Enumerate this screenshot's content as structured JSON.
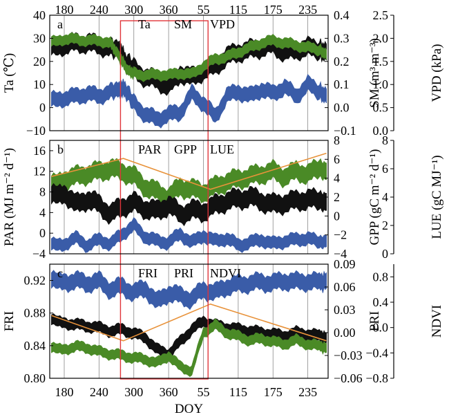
{
  "chart_data": {
    "type": "line",
    "shared_x": {
      "label": "DOY",
      "tick_labels": [
        "180",
        "240",
        "300",
        "360",
        "55",
        "115",
        "175",
        "235"
      ],
      "ticks_day": [
        180,
        240,
        300,
        360,
        420,
        480,
        540,
        600
      ],
      "range_day": [
        155,
        635
      ]
    },
    "highlight_box": {
      "x_range_day": [
        277,
        428
      ],
      "color": "#e0353a"
    },
    "panels": [
      {
        "id": "a",
        "left_axis": {
          "label": "Ta (℃)",
          "ylim": [
            -10,
            40
          ],
          "ticks": [
            -10,
            0,
            10,
            20,
            30,
            40
          ]
        },
        "right_axis": {
          "label": "SM (m³ m⁻³)",
          "ylim": [
            -0.1,
            0.4
          ],
          "ticks": [
            -0.1,
            0.0,
            0.1,
            0.2,
            0.3,
            0.4
          ],
          "tick_labels": [
            "−0.1",
            "0.0",
            "0.1",
            "0.2",
            "0.3",
            "0.4"
          ]
        },
        "right2_axis": {
          "label": "VPD (kPa)",
          "ylim": [
            0,
            2.5
          ],
          "ticks": [
            0,
            0.5,
            1.0,
            1.5,
            2.0,
            2.5
          ],
          "tick_labels": [
            "0.0",
            "0.5",
            "1.0",
            "1.5",
            "2.0",
            "2.5"
          ]
        },
        "legend": [
          "Ta",
          "SM",
          "VPD"
        ],
        "series": [
          {
            "name": "Ta",
            "color": "#111111",
            "axis": "left",
            "band": 3.5,
            "x": [
              158,
              180,
              200,
              220,
              240,
              260,
              275,
              285,
              300,
              320,
              340,
              360,
              380,
              400,
              420,
              440,
              460,
              480,
              500,
              520,
              540,
              560,
              580,
              600,
              620,
              632
            ],
            "y": [
              28,
              27,
              28,
              28,
              27,
              26,
              25,
              20,
              17,
              13,
              12,
              9,
              15,
              13,
              16,
              18,
              22,
              24,
              25,
              26,
              27,
              24,
              25,
              26,
              25,
              24
            ]
          },
          {
            "name": "SM",
            "color": "#3a5ca8",
            "axis": "right",
            "band": 0.03,
            "x": [
              158,
              180,
              200,
              220,
              240,
              260,
              275,
              285,
              300,
              320,
              340,
              360,
              380,
              400,
              420,
              440,
              460,
              480,
              500,
              520,
              540,
              560,
              580,
              600,
              620,
              632
            ],
            "y": [
              0.05,
              0.04,
              0.05,
              0.06,
              0.05,
              0.07,
              0.08,
              0.08,
              0.02,
              -0.03,
              -0.05,
              -0.03,
              -0.02,
              0.06,
              0.02,
              -0.04,
              0.05,
              0.07,
              0.05,
              0.08,
              0.06,
              0.09,
              0.05,
              0.1,
              0.07,
              0.05
            ]
          },
          {
            "name": "VPD",
            "color": "#4a8a26",
            "axis": "right2",
            "band": 0.1,
            "x": [
              158,
              180,
              200,
              220,
              240,
              260,
              270,
              280,
              290,
              300,
              320,
              340,
              360,
              380,
              400,
              420,
              440,
              460,
              480,
              500,
              520,
              540,
              560,
              580,
              600,
              620,
              632
            ],
            "y": [
              1.98,
              1.98,
              1.98,
              1.95,
              1.95,
              1.9,
              1.7,
              1.5,
              1.3,
              1.25,
              1.2,
              1.22,
              1.2,
              1.25,
              1.22,
              1.4,
              1.55,
              1.6,
              1.7,
              1.8,
              1.9,
              1.95,
              1.9,
              1.85,
              1.8,
              1.75,
              1.65
            ]
          }
        ]
      },
      {
        "id": "b",
        "left_axis": {
          "label": "PAR (MJ m⁻² d⁻¹)",
          "ylim": [
            -4,
            18
          ],
          "ticks": [
            -4,
            0,
            4,
            8,
            12,
            16
          ]
        },
        "right_axis": {
          "label": "GPP (gC m⁻² d⁻¹)",
          "ylim": [
            -4,
            8
          ],
          "ticks": [
            -4,
            -2,
            0,
            2,
            4,
            6,
            8
          ],
          "tick_labels": [
            "−4",
            "−2",
            "0",
            "2",
            "4",
            "6",
            "8"
          ]
        },
        "right2_axis": {
          "label": "LUE (gC MJ⁻¹)",
          "ylim": [
            0,
            8
          ],
          "ticks": [
            0,
            2,
            4,
            6,
            8
          ]
        },
        "legend": [
          "PAR",
          "GPP",
          "LUE"
        ],
        "series": [
          {
            "name": "PAR",
            "color": "#4a8a26",
            "axis": "left",
            "band": 1.6,
            "x": [
              158,
              180,
              200,
              220,
              240,
              260,
              280,
              300,
              320,
              340,
              360,
              380,
              400,
              420,
              440,
              460,
              480,
              500,
              520,
              540,
              560,
              580,
              600,
              620,
              632
            ],
            "y": [
              10,
              10.5,
              11,
              11.5,
              12,
              12.5,
              12,
              11,
              9,
              8,
              7,
              9,
              8.5,
              8,
              9,
              10,
              10.5,
              11,
              11.5,
              12,
              11,
              12,
              11.5,
              12.5,
              12
            ]
          },
          {
            "name": "GPP",
            "color": "#111111",
            "axis": "right",
            "band": 0.9,
            "x": [
              158,
              180,
              200,
              220,
              240,
              260,
              280,
              300,
              320,
              340,
              360,
              380,
              400,
              420,
              440,
              460,
              480,
              500,
              520,
              540,
              560,
              580,
              600,
              620,
              632
            ],
            "y": [
              2.5,
              2.5,
              1.2,
              1.8,
              1.2,
              0.2,
              1.0,
              1.4,
              0.8,
              0.5,
              1.2,
              0.2,
              0.6,
              0.5,
              1.1,
              1.6,
              1.8,
              2.0,
              1.6,
              1.2,
              1.4,
              1.6,
              1.8,
              1.6,
              1.5
            ]
          },
          {
            "name": "LUE",
            "color": "#3a5ca8",
            "axis": "right2",
            "band": 0.4,
            "x": [
              158,
              180,
              200,
              220,
              240,
              260,
              280,
              300,
              320,
              340,
              360,
              380,
              400,
              420,
              440,
              460,
              480,
              500,
              520,
              540,
              560,
              580,
              600,
              620,
              632
            ],
            "y": [
              0.8,
              0.7,
              1.1,
              0.6,
              1.0,
              0.7,
              1.4,
              2.0,
              1.2,
              0.9,
              0.8,
              1.4,
              0.8,
              1.3,
              0.9,
              1.1,
              0.6,
              0.8,
              1.0,
              0.7,
              0.9,
              1.0,
              1.1,
              0.8,
              0.9
            ]
          }
        ],
        "trend": {
          "color": "#e8923a",
          "axis": "left",
          "x": [
            158,
            282,
            432,
            632
          ],
          "y": [
            11,
            14.5,
            8.5,
            15.5
          ]
        }
      },
      {
        "id": "c",
        "left_axis": {
          "label": "FRI",
          "ylim": [
            0.8,
            0.94
          ],
          "ticks": [
            0.8,
            0.84,
            0.88,
            0.92
          ],
          "tick_labels": [
            "0.80",
            "0.84",
            "0.88",
            "0.92"
          ]
        },
        "right_axis": {
          "label": "PRI",
          "ylim": [
            -0.06,
            0.09
          ],
          "ticks": [
            -0.06,
            -0.03,
            0.0,
            0.03,
            0.06,
            0.09
          ],
          "tick_labels": [
            "−0.06",
            "−0.03",
            "0.00",
            "0.03",
            "0.06",
            "0.09"
          ]
        },
        "right2_axis": {
          "label": "NDVI",
          "ylim": [
            -0.8,
            1.0
          ],
          "ticks": [
            -0.8,
            -0.4,
            0.0,
            0.4,
            0.8
          ],
          "tick_labels": [
            "−0.8",
            "−0.4",
            "0.0",
            "0.4",
            "0.8"
          ]
        },
        "legend": [
          "FRI",
          "PRI",
          "NDVI"
        ],
        "series": [
          {
            "name": "NDVI",
            "color": "#3a5ca8",
            "axis": "right2",
            "band": 0.12,
            "x": [
              158,
              180,
              200,
              220,
              240,
              260,
              280,
              300,
              320,
              340,
              360,
              380,
              400,
              420,
              440,
              460,
              480,
              500,
              520,
              540,
              560,
              580,
              600,
              620,
              632
            ],
            "y": [
              0.75,
              0.72,
              0.74,
              0.7,
              0.73,
              0.6,
              0.65,
              0.55,
              0.62,
              0.4,
              0.55,
              0.5,
              0.45,
              0.6,
              0.55,
              0.65,
              0.68,
              0.7,
              0.72,
              0.7,
              0.74,
              0.72,
              0.73,
              0.71,
              0.74
            ]
          },
          {
            "name": "FRI",
            "color": "#111111",
            "axis": "left",
            "band": 0.006,
            "x": [
              158,
              180,
              200,
              220,
              240,
              260,
              280,
              300,
              320,
              340,
              360,
              380,
              400,
              420,
              440,
              460,
              480,
              500,
              520,
              540,
              560,
              580,
              600,
              620,
              632
            ],
            "y": [
              0.872,
              0.868,
              0.866,
              0.864,
              0.862,
              0.858,
              0.86,
              0.855,
              0.85,
              0.835,
              0.83,
              0.845,
              0.86,
              0.87,
              0.865,
              0.862,
              0.86,
              0.858,
              0.856,
              0.854,
              0.852,
              0.856,
              0.854,
              0.852,
              0.85
            ]
          },
          {
            "name": "PRI",
            "color": "#4a8a26",
            "axis": "right",
            "band": 0.006,
            "x": [
              158,
              180,
              200,
              220,
              240,
              260,
              280,
              300,
              320,
              340,
              360,
              380,
              400,
              420,
              440,
              460,
              480,
              500,
              520,
              540,
              560,
              580,
              600,
              620,
              632
            ],
            "y": [
              -0.02,
              -0.022,
              -0.018,
              -0.02,
              -0.025,
              -0.028,
              -0.03,
              -0.033,
              -0.035,
              -0.04,
              -0.03,
              -0.045,
              -0.05,
              0.0,
              0.01,
              0.0,
              -0.005,
              -0.01,
              -0.008,
              -0.012,
              -0.015,
              -0.01,
              -0.015,
              -0.018,
              -0.02
            ]
          }
        ],
        "trend": {
          "color": "#e8923a",
          "axis": "left",
          "x": [
            158,
            282,
            432,
            632
          ],
          "y": [
            0.877,
            0.846,
            0.891,
            0.846
          ]
        }
      }
    ]
  }
}
